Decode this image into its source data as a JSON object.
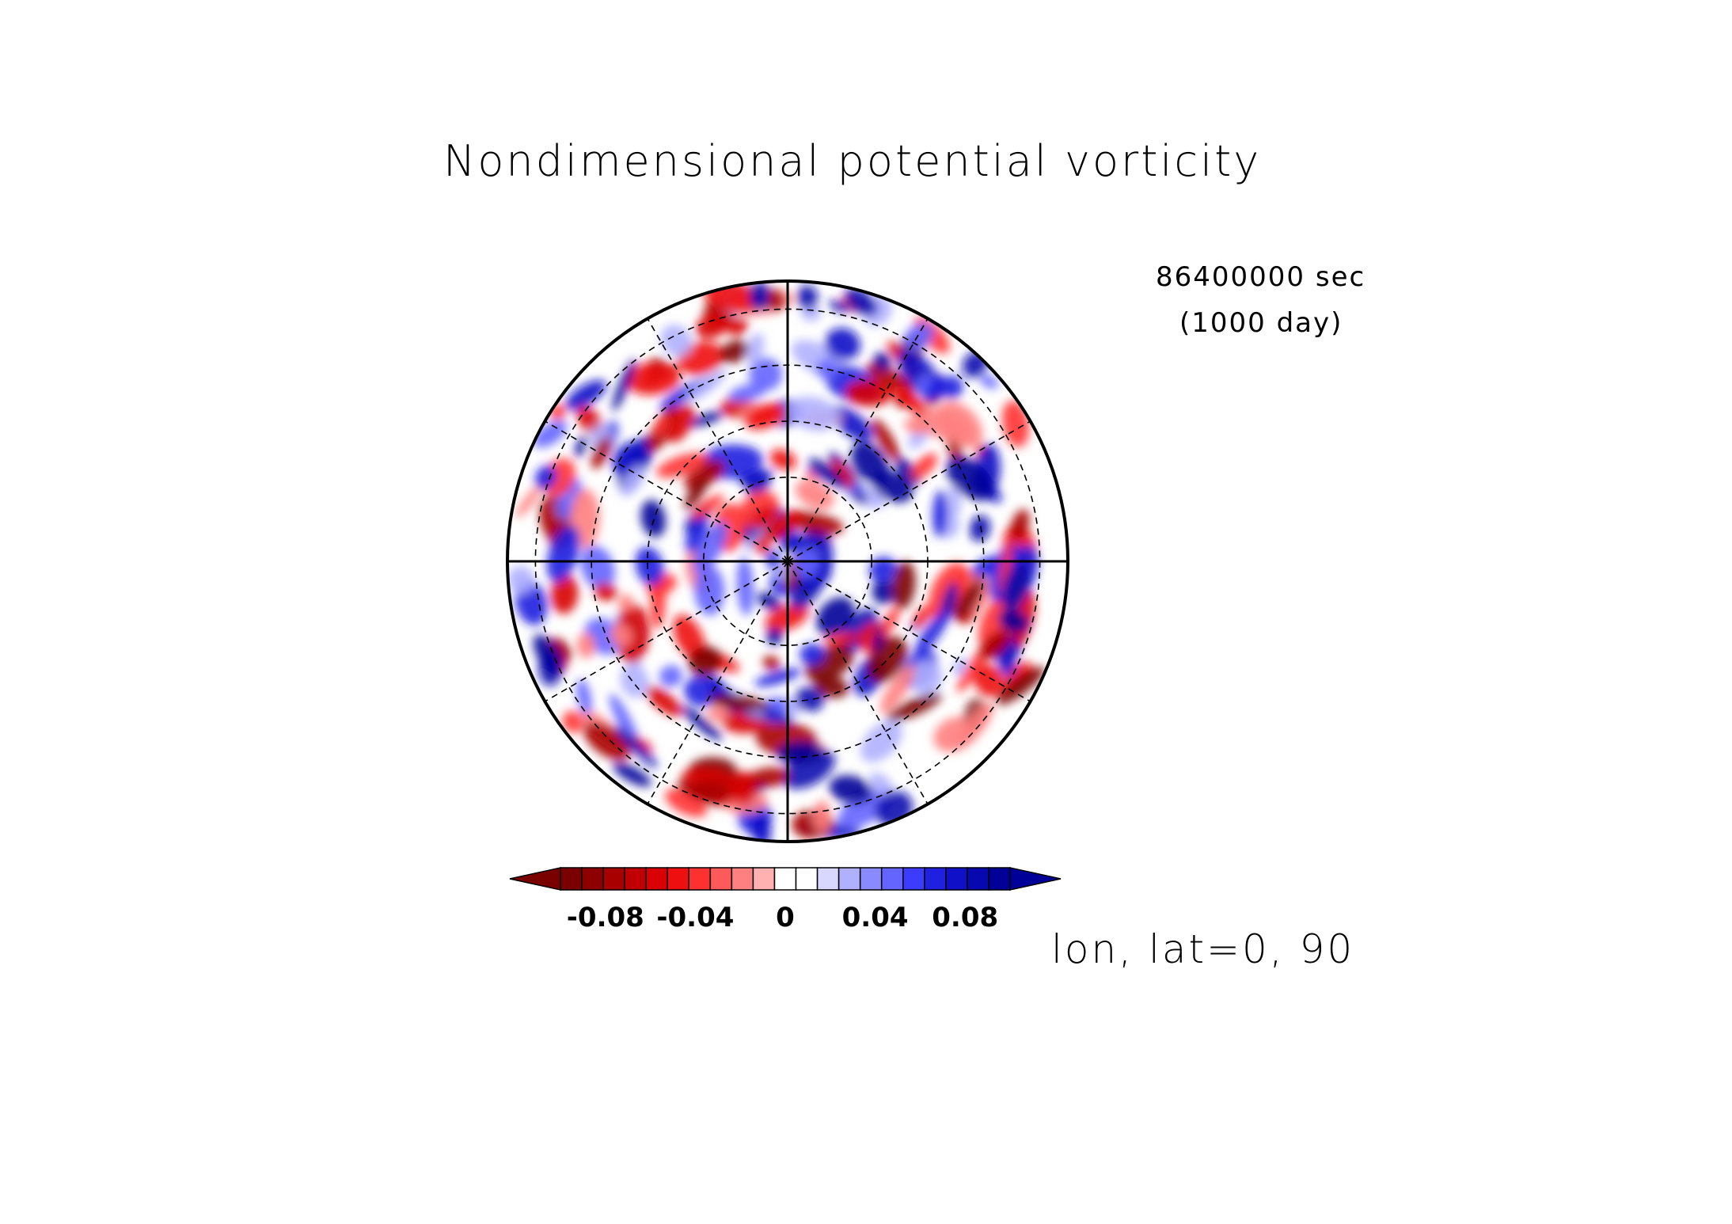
{
  "figure": {
    "title": "Nondimensional potential vorticity",
    "time_seconds": "86400000 sec",
    "time_days": "(1000 day)",
    "axis_info": "lon, lat=0, 90"
  },
  "chart_data": {
    "type": "heatmap",
    "projection": "polar stereographic, north pole centered",
    "title": "Nondimensional potential vorticity",
    "variable": "Nondimensional potential vorticity",
    "time": "86400000 sec (1000 day)",
    "grid": true,
    "meridians_deg": [
      0,
      30,
      60,
      90,
      120,
      150,
      180,
      210,
      240,
      270,
      300,
      330
    ],
    "latitude_circles_dashed": true,
    "colorbar": {
      "orientation": "horizontal",
      "placement": "bottom",
      "extend": "both",
      "min": -0.1,
      "max": 0.1,
      "step": 0.01,
      "tick_labels": [
        "-0.08",
        "-0.04",
        "0",
        "0.04",
        "0.08"
      ],
      "tick_values": [
        -0.08,
        -0.04,
        0,
        0.04,
        0.08
      ],
      "colors": [
        "#7a0000",
        "#8e0000",
        "#a80000",
        "#c00000",
        "#d80000",
        "#ee1010",
        "#ff3030",
        "#ff5a5a",
        "#ff8080",
        "#ffb0b0",
        "#ffffff",
        "#ffffff",
        "#d8d8ff",
        "#b0b0ff",
        "#8a8aff",
        "#6464ff",
        "#3c3cff",
        "#2020e0",
        "#1010c8",
        "#0808b0",
        "#000098"
      ],
      "under_color": "#7a0000",
      "over_color": "#000098"
    },
    "field_description": "random-like mesoscale vortices of both signs across the hemisphere"
  }
}
